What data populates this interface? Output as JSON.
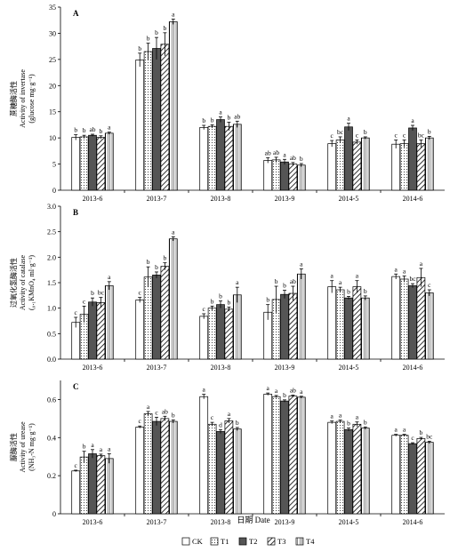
{
  "figure": {
    "xlabel": "日期 Date",
    "legend": [
      "CK",
      "T1",
      "T2",
      "T3",
      "T4"
    ]
  },
  "colors": {
    "CK": "#ffffff",
    "T1": "#ffffff",
    "T2": "#555555",
    "T3": "#ffffff",
    "T4": "#ffffff",
    "stroke": "#000000"
  },
  "chart_data": [
    {
      "type": "bar",
      "panel": "A",
      "ylabel_cn": "蔗糖酶活性",
      "ylabel_en": "Activity of invertase",
      "ylabel_unit": "(glucose mg·g⁻¹)",
      "ylim": [
        0,
        35
      ],
      "yticks": [
        0,
        5,
        10,
        15,
        20,
        25,
        30,
        35
      ],
      "yticklabels": [
        "0",
        "5",
        "10",
        "15",
        "20",
        "25",
        "30",
        "35"
      ],
      "categories": [
        "2013-6",
        "2013-7",
        "2013-8",
        "2013-9",
        "2014-5",
        "2014-6"
      ],
      "series": [
        {
          "name": "CK",
          "values": [
            10.1,
            24.9,
            12.0,
            5.7,
            8.9,
            8.8
          ],
          "errors": [
            0.5,
            1.3,
            0.4,
            0.5,
            0.6,
            0.8
          ]
        },
        {
          "name": "T1",
          "values": [
            10.2,
            26.5,
            12.2,
            5.8,
            9.6,
            8.9
          ],
          "errors": [
            0.3,
            1.6,
            0.3,
            0.5,
            0.6,
            0.7
          ]
        },
        {
          "name": "T2",
          "values": [
            10.5,
            27.1,
            13.5,
            5.4,
            12.1,
            11.9
          ],
          "errors": [
            0.2,
            2.1,
            0.5,
            0.5,
            0.7,
            0.5
          ]
        },
        {
          "name": "T3",
          "values": [
            10.1,
            27.9,
            12.2,
            5.0,
            9.2,
            8.9
          ],
          "errors": [
            0.3,
            2.2,
            0.8,
            0.3,
            0.4,
            0.7
          ]
        },
        {
          "name": "T4",
          "values": [
            10.9,
            32.2,
            12.6,
            4.8,
            10.0,
            10.0
          ],
          "errors": [
            0.2,
            0.5,
            0.6,
            0.3,
            0.2,
            0.3
          ]
        }
      ],
      "letters": [
        [
          "b",
          "b",
          "ab",
          "b",
          "a"
        ],
        [
          "b",
          "b",
          "b",
          "b",
          "a"
        ],
        [
          "b",
          "b",
          "a",
          "b",
          "ab"
        ],
        [
          "ab",
          "ab",
          "a",
          "ab",
          "b"
        ],
        [
          "c",
          "bc",
          "a",
          "c",
          "b"
        ],
        [
          "c",
          "c",
          "a",
          "bc",
          "b"
        ]
      ]
    },
    {
      "type": "bar",
      "panel": "B",
      "ylabel_cn": "过氧化氢酶活性",
      "ylabel_en": "Activity of catalase",
      "ylabel_unit": "(₀.₁KMnO₄ ml·g⁻¹)",
      "ylim": [
        0,
        3.0
      ],
      "yticks": [
        0,
        0.5,
        1.0,
        1.5,
        2.0,
        2.5,
        3.0
      ],
      "yticklabels": [
        "0.0",
        "0.5",
        "1.0",
        "1.5",
        "2.0",
        "2.5",
        "3.0"
      ],
      "categories": [
        "2013-6",
        "2013-7",
        "2013-8",
        "2013-9",
        "2014-5",
        "2014-6"
      ],
      "series": [
        {
          "name": "CK",
          "values": [
            0.72,
            1.16,
            0.84,
            0.92,
            1.42,
            1.62
          ],
          "errors": [
            0.1,
            0.05,
            0.05,
            0.15,
            0.12,
            0.05
          ]
        },
        {
          "name": "T1",
          "values": [
            0.88,
            1.61,
            1.0,
            1.17,
            1.36,
            1.57
          ],
          "errors": [
            0.16,
            0.2,
            0.04,
            0.26,
            0.05,
            0.06
          ]
        },
        {
          "name": "T2",
          "values": [
            1.12,
            1.65,
            1.07,
            1.27,
            1.2,
            1.44
          ],
          "errors": [
            0.08,
            0.06,
            0.07,
            0.08,
            0.03,
            0.04
          ]
        },
        {
          "name": "T3",
          "values": [
            1.11,
            1.82,
            0.98,
            1.29,
            1.42,
            1.6
          ],
          "errors": [
            0.1,
            0.07,
            0.04,
            0.14,
            0.12,
            0.18
          ]
        },
        {
          "name": "T4",
          "values": [
            1.44,
            2.36,
            1.26,
            1.67,
            1.2,
            1.3
          ],
          "errors": [
            0.08,
            0.04,
            0.15,
            0.1,
            0.04,
            0.06
          ]
        }
      ],
      "letters": [
        [
          "c",
          "c",
          "b",
          "bc",
          "a"
        ],
        [
          "c",
          "b",
          "b",
          "b",
          "a"
        ],
        [
          "c",
          "b",
          "b",
          "b",
          "a"
        ],
        [
          "b",
          "b",
          "b",
          "ab",
          "a"
        ],
        [
          "a",
          "a",
          "b",
          "a",
          "b"
        ],
        [
          "a",
          "a",
          "bc",
          "a",
          "c"
        ]
      ]
    },
    {
      "type": "bar",
      "panel": "C",
      "ylabel_cn": "脲酶活性",
      "ylabel_en": "Activity of urease",
      "ylabel_unit": "(NH₃-N mg·g⁻¹)",
      "ylim": [
        0,
        0.7
      ],
      "yticks": [
        0,
        0.2,
        0.4,
        0.6
      ],
      "yticklabels": [
        "0",
        "0.2",
        "0.4",
        "0.6"
      ],
      "categories": [
        "2013-6",
        "2013-7",
        "2013-8",
        "2013-9",
        "2014-5",
        "2014-6"
      ],
      "series": [
        {
          "name": "CK",
          "values": [
            0.225,
            0.455,
            0.615,
            0.628,
            0.48,
            0.412
          ],
          "errors": [
            0.004,
            0.006,
            0.012,
            0.006,
            0.007,
            0.005
          ]
        },
        {
          "name": "T1",
          "values": [
            0.298,
            0.525,
            0.47,
            0.615,
            0.485,
            0.412
          ],
          "errors": [
            0.03,
            0.012,
            0.01,
            0.006,
            0.007,
            0.005
          ]
        },
        {
          "name": "T2",
          "values": [
            0.315,
            0.485,
            0.432,
            0.592,
            0.442,
            0.368
          ],
          "errors": [
            0.022,
            0.022,
            0.01,
            0.006,
            0.008,
            0.005
          ]
        },
        {
          "name": "T3",
          "values": [
            0.305,
            0.5,
            0.488,
            0.618,
            0.47,
            0.395
          ],
          "errors": [
            0.008,
            0.012,
            0.012,
            0.005,
            0.012,
            0.006
          ]
        },
        {
          "name": "T4",
          "values": [
            0.29,
            0.485,
            0.445,
            0.612,
            0.45,
            0.375
          ],
          "errors": [
            0.025,
            0.008,
            0.008,
            0.005,
            0.006,
            0.006
          ]
        }
      ],
      "letters": [
        [
          "c",
          "b",
          "a",
          "a",
          "a"
        ],
        [
          "c",
          "a",
          "c",
          "ab",
          "b"
        ],
        [
          "a",
          "c",
          "d",
          "a",
          "b"
        ],
        [
          "a",
          "a",
          "b",
          "ab",
          "a"
        ],
        [
          "a",
          "a",
          "b",
          "a",
          "b"
        ],
        [
          "a",
          "a",
          "c",
          "b",
          "bc"
        ]
      ]
    }
  ]
}
